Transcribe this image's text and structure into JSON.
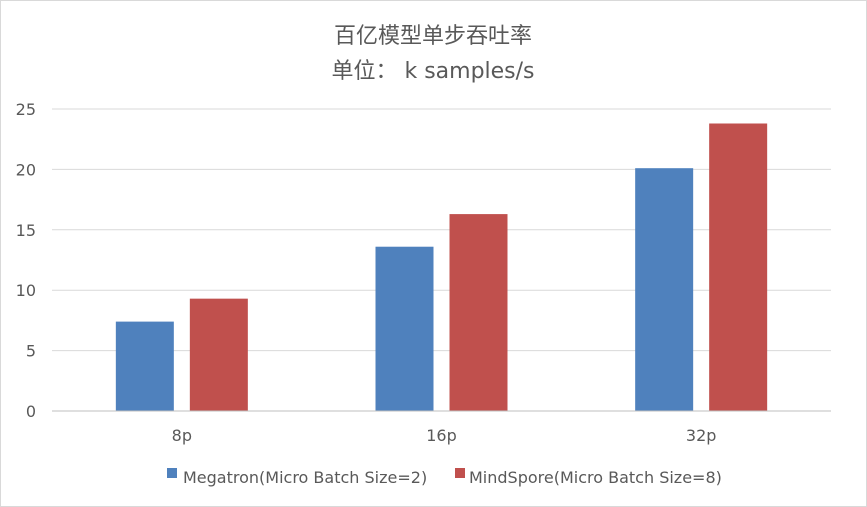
{
  "chart_data": {
    "type": "bar",
    "title": "百亿模型单步吞吐率",
    "subtitle": "单位： k samples/s",
    "categories": [
      "8p",
      "16p",
      "32p"
    ],
    "series": [
      {
        "name": "Megatron(Micro Batch Size=2)",
        "values": [
          7.4,
          13.6,
          20.1
        ],
        "color": "#4f81bd"
      },
      {
        "name": "MindSpore(Micro Batch Size=8)",
        "values": [
          9.3,
          16.3,
          23.8
        ],
        "color": "#c0504d"
      }
    ],
    "ylim": [
      0,
      25
    ],
    "yticks": [
      "0",
      "5",
      "10",
      "15",
      "20",
      "25"
    ],
    "grid": true,
    "legend_position": "bottom",
    "gridline_color": "#d9d9d9",
    "axis_color": "#bfbfbf",
    "text_color": "#595959"
  }
}
